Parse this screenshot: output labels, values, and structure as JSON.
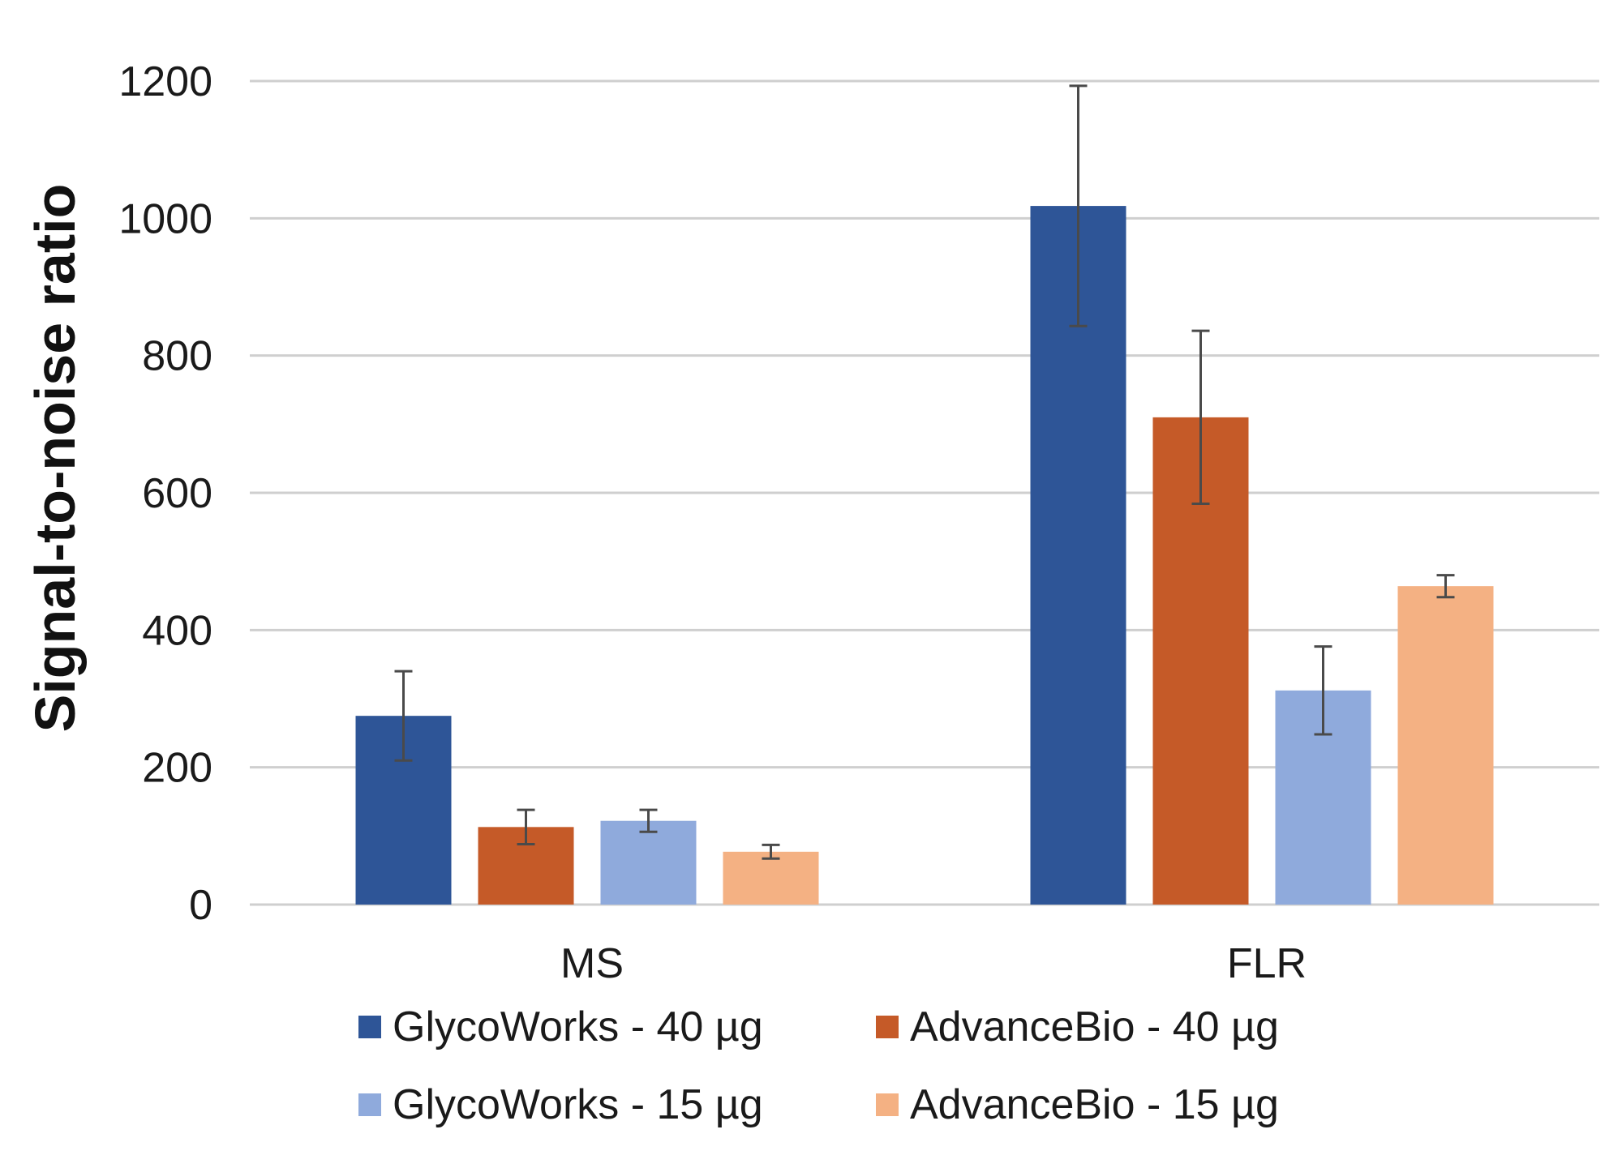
{
  "chart_data": {
    "type": "bar",
    "title": "",
    "xlabel": "",
    "ylabel": "Signal-to-noise ratio",
    "categories": [
      "MS",
      "FLR"
    ],
    "ylim": [
      0,
      1200
    ],
    "yticks": [
      0,
      200,
      400,
      600,
      800,
      1000,
      1200
    ],
    "yticks_labels": [
      "0",
      "200",
      "400",
      "600",
      "800",
      "1000",
      "1200"
    ],
    "grid": "horizontal",
    "legend_position": "bottom",
    "series": [
      {
        "name": "GlycoWorks - 40 µg",
        "color": "#2e5597",
        "values": [
          275,
          1018
        ],
        "error": [
          65,
          175
        ]
      },
      {
        "name": "AdvanceBio - 40 µg",
        "color": "#c55a28",
        "values": [
          113,
          710
        ],
        "error": [
          25,
          126
        ]
      },
      {
        "name": "GlycoWorks - 15 µg",
        "color": "#8faadc",
        "values": [
          122,
          312
        ],
        "error": [
          16,
          64
        ]
      },
      {
        "name": "AdvanceBio - 15 µg",
        "color": "#f4b183",
        "values": [
          77,
          464
        ],
        "error": [
          10,
          16
        ]
      }
    ]
  }
}
